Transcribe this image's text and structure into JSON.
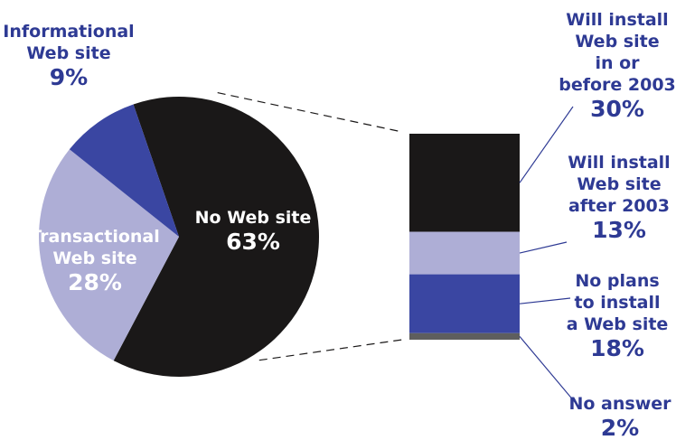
{
  "chart_data": [
    {
      "type": "pie",
      "slices": [
        {
          "name_lines": [
            "No Web site"
          ],
          "percent_label": "63%",
          "value": 63,
          "color": "#1a1818"
        },
        {
          "name_lines": [
            "Transactional",
            "Web site"
          ],
          "percent_label": "28%",
          "value": 28,
          "color": "#aeaed6"
        },
        {
          "name_lines": [
            "Informational",
            "Web site"
          ],
          "percent_label": "9%",
          "value": 9,
          "color": "#3a46a2"
        }
      ],
      "exploded_slice": "No Web site"
    },
    {
      "type": "bar",
      "stacked": true,
      "breakdown_of": "No Web site",
      "segments": [
        {
          "name_lines": [
            "Will install",
            "Web site",
            "in or",
            "before 2003"
          ],
          "percent_label": "30%",
          "value": 30,
          "color": "#1a1818"
        },
        {
          "name_lines": [
            "Will install",
            "Web site",
            "after 2003"
          ],
          "percent_label": "13%",
          "value": 13,
          "color": "#aeaed6"
        },
        {
          "name_lines": [
            "No plans",
            "to install",
            "a Web site"
          ],
          "percent_label": "18%",
          "value": 18,
          "color": "#3a46a2"
        },
        {
          "name_lines": [
            "No answer"
          ],
          "percent_label": "2%",
          "value": 2,
          "color": "#5e5e5e"
        }
      ]
    }
  ],
  "colors": {
    "label_text": "#2e3a94",
    "inside_label_text": "#ffffff",
    "leader_line": "#2e3a94",
    "connector_line": "#1a1818"
  }
}
